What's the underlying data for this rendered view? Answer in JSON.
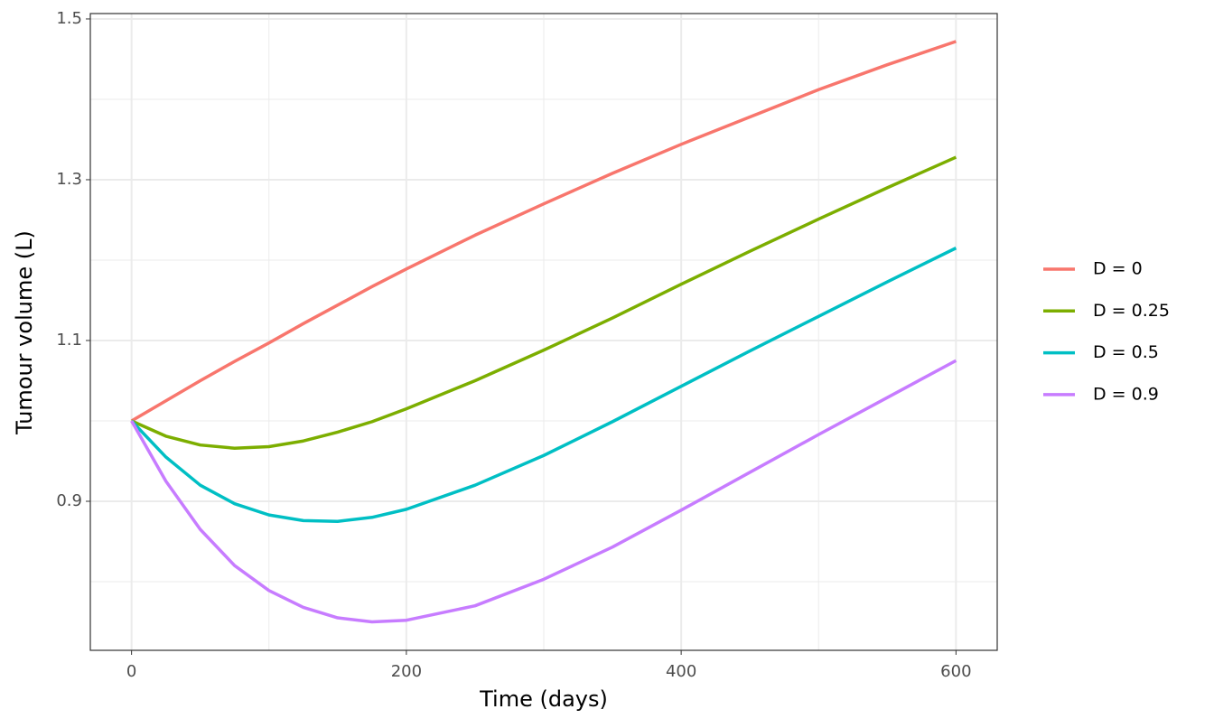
{
  "chart_data": {
    "type": "line",
    "x_label": "Time (days)",
    "y_label": "Tumour volume (L)",
    "x": [
      0,
      25,
      50,
      75,
      100,
      125,
      150,
      175,
      200,
      250,
      300,
      350,
      400,
      450,
      500,
      550,
      600
    ],
    "series": [
      {
        "name": "D = 0",
        "color": "#f8766d",
        "values": [
          1.0,
          1.025,
          1.05,
          1.074,
          1.097,
          1.121,
          1.144,
          1.167,
          1.189,
          1.231,
          1.27,
          1.308,
          1.344,
          1.378,
          1.412,
          1.443,
          1.472
        ]
      },
      {
        "name": "D = 0.25",
        "color": "#7cae00",
        "values": [
          1.0,
          0.981,
          0.97,
          0.966,
          0.968,
          0.975,
          0.986,
          0.999,
          1.015,
          1.05,
          1.088,
          1.128,
          1.17,
          1.211,
          1.251,
          1.29,
          1.328
        ]
      },
      {
        "name": "D = 0.5",
        "color": "#00bfc4",
        "values": [
          1.0,
          0.955,
          0.92,
          0.897,
          0.883,
          0.876,
          0.875,
          0.88,
          0.89,
          0.92,
          0.957,
          0.999,
          1.043,
          1.087,
          1.13,
          1.173,
          1.215
        ]
      },
      {
        "name": "D = 0.9",
        "color": "#c77cff",
        "values": [
          1.0,
          0.925,
          0.865,
          0.82,
          0.789,
          0.768,
          0.755,
          0.75,
          0.752,
          0.77,
          0.803,
          0.843,
          0.889,
          0.936,
          0.983,
          1.029,
          1.075
        ]
      }
    ],
    "xlim": [
      -30,
      630
    ],
    "ylim": [
      0.7146,
      1.5067
    ],
    "xticks": [
      0,
      200,
      400,
      600
    ],
    "yticks": [
      0.9,
      1.1,
      1.3,
      1.5
    ],
    "x_minor_ticks": [
      100,
      300,
      500
    ],
    "y_minor_ticks": [
      0.8,
      1.0,
      1.2,
      1.4
    ],
    "grid": true,
    "legend": "right"
  }
}
